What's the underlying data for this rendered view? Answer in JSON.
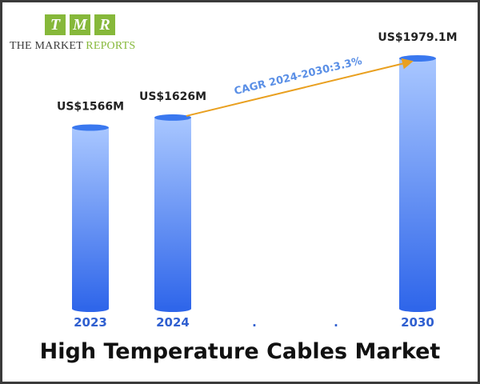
{
  "logo": {
    "letters": [
      "T",
      "M",
      "R"
    ],
    "text_part1": "THE MARKET",
    "text_part2": "REPORTS"
  },
  "colors": {
    "bar_top": "#a9c7ff",
    "bar_bottom": "#2f66ea",
    "cap": "#3a78ef",
    "cagr_line": "#e9a020",
    "cagr_text": "#5a8fe6",
    "year_label": "#2f5fd0"
  },
  "chart_data": {
    "type": "bar",
    "title": "High Temperature Cables Market",
    "categories": [
      "2023",
      "2024",
      ".",
      ".",
      "2030"
    ],
    "values": [
      1566,
      1626,
      null,
      null,
      1979.1
    ],
    "data_labels": [
      "US$1566M",
      "US$1626M",
      "",
      "",
      "US$1979.1M"
    ],
    "unit": "US$ Million",
    "annotation": {
      "text": "CAGR 2024-2030:3.3%",
      "from": "2024",
      "to": "2030"
    },
    "grid": false,
    "legend": "none"
  }
}
